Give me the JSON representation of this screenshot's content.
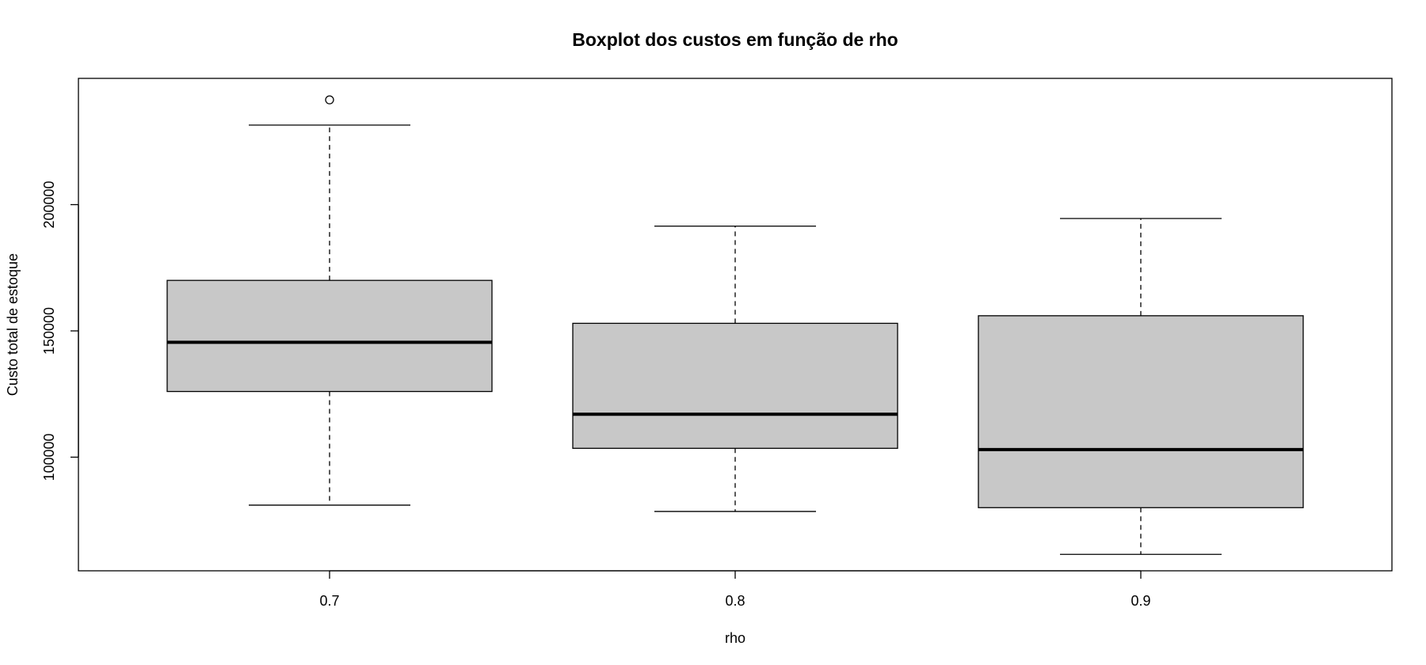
{
  "chart_data": {
    "type": "boxplot",
    "title": "Boxplot dos custos em função de rho",
    "xlabel": "rho",
    "ylabel": "Custo total de estoque",
    "categories": [
      "0.7",
      "0.8",
      "0.9"
    ],
    "y_ticks": [
      100000,
      150000,
      200000
    ],
    "y_tick_labels": [
      "100000",
      "150000",
      "200000"
    ],
    "ylim": [
      55000,
      250000
    ],
    "grid": false,
    "box_fill": "#c8c8c8",
    "line_color": "#000000",
    "boxes": [
      {
        "category": "0.7",
        "whisker_low": 81000,
        "q1": 126000,
        "median": 145500,
        "q3": 170000,
        "whisker_high": 231500,
        "outliers": [
          241500
        ]
      },
      {
        "category": "0.8",
        "whisker_low": 78500,
        "q1": 103500,
        "median": 117000,
        "q3": 153000,
        "whisker_high": 191500,
        "outliers": []
      },
      {
        "category": "0.9",
        "whisker_low": 61500,
        "q1": 80000,
        "median": 103000,
        "q3": 156000,
        "whisker_high": 194500,
        "outliers": []
      }
    ]
  }
}
